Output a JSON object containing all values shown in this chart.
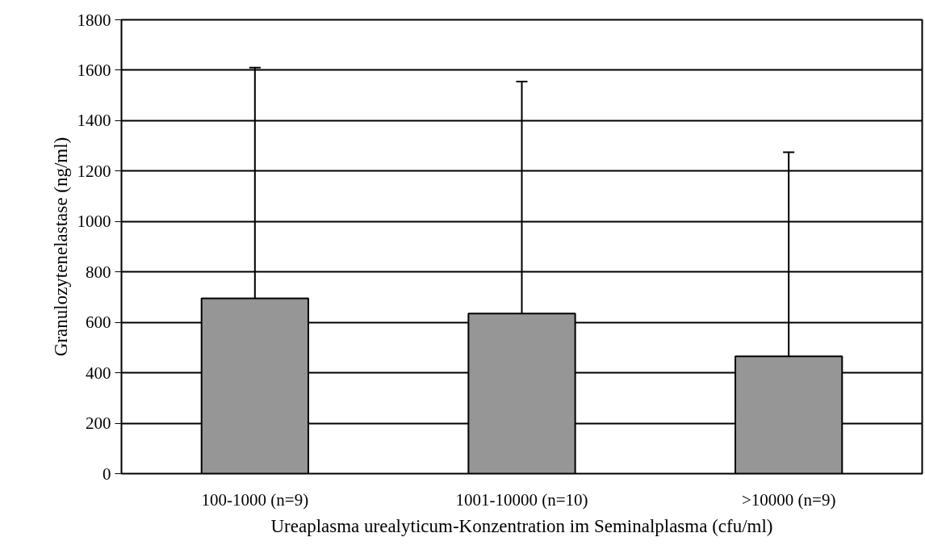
{
  "chart_data": {
    "type": "bar",
    "xlabel": "Ureaplasma urealyticum-Konzentration im Seminalplasma (cfu/ml)",
    "ylabel": "Granulozytenelastase (ng/ml)",
    "categories": [
      "100-1000 (n=9)",
      "1001-10000 (n=10)",
      ">10000 (n=9)"
    ],
    "values": [
      695,
      635,
      465
    ],
    "errors": [
      [
        695,
        1610
      ],
      [
        635,
        1555
      ],
      [
        465,
        1275
      ]
    ],
    "color": "#969696",
    "ylim": [
      0,
      1800
    ],
    "yticks": [
      0,
      200,
      400,
      600,
      800,
      1000,
      1200,
      1400,
      1600,
      1800
    ],
    "grid": "y"
  }
}
